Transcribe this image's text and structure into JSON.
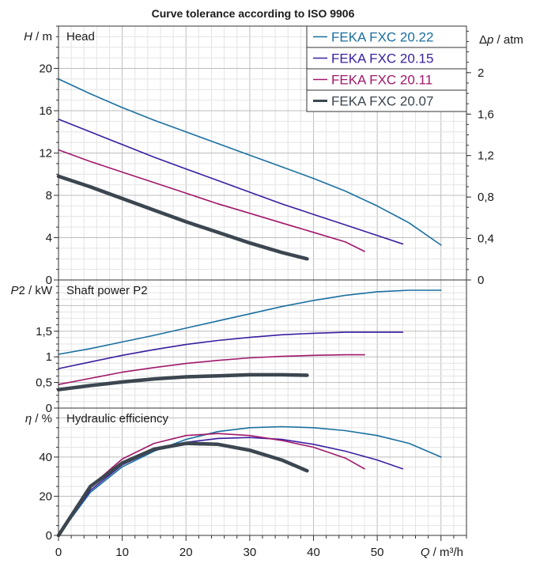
{
  "chart_data": {
    "type": "line",
    "title": "Curve tolerance according to ISO 9906",
    "x_axis": {
      "label_var": "Q",
      "label_unit": " / m³/h",
      "range": [
        0,
        64
      ],
      "ticks": [
        0,
        10,
        20,
        30,
        40,
        50
      ],
      "tick_labels": [
        "0",
        "10",
        "20",
        "30",
        "40",
        "50"
      ]
    },
    "legend": {
      "placement": "top-right",
      "entries": [
        "FEKA FXC 20.22",
        "FEKA FXC 20.15",
        "FEKA FXC 20.11",
        "FEKA FXC 20.07"
      ]
    },
    "series_colors": [
      "#1a6fa0",
      "#3a1ea0",
      "#a0186a",
      "#3c4650"
    ],
    "series_widths": [
      1.6,
      1.6,
      1.6,
      4.5
    ],
    "panels": [
      {
        "title": "Head",
        "y_label_var": "H",
        "y_label_unit": " / m",
        "ylim": [
          0,
          24
        ],
        "y_ticks": [
          0,
          4,
          8,
          12,
          16,
          20
        ],
        "y_tick_labels": [
          "0",
          "4",
          "8",
          "12",
          "16",
          "20"
        ],
        "right_axis": {
          "label_var": "Δp",
          "label_unit": " / atm",
          "ticks": [
            0,
            0.4,
            0.8,
            1.2,
            1.6,
            2
          ],
          "tick_labels": [
            "0",
            "0,4",
            "0,8",
            "1,2",
            "1,6",
            "2"
          ],
          "scale": 9.8
        },
        "series": [
          {
            "x": [
              0,
              5,
              10,
              15,
              20,
              25,
              30,
              35,
              40,
              45,
              50,
              55,
              60
            ],
            "y": [
              19.0,
              17.6,
              16.3,
              15.1,
              14.0,
              12.9,
              11.8,
              10.7,
              9.6,
              8.4,
              7.0,
              5.4,
              3.3
            ]
          },
          {
            "x": [
              0,
              5,
              10,
              15,
              20,
              25,
              30,
              35,
              40,
              45,
              50,
              54
            ],
            "y": [
              15.2,
              14.0,
              12.8,
              11.6,
              10.5,
              9.4,
              8.3,
              7.2,
              6.2,
              5.2,
              4.2,
              3.4
            ]
          },
          {
            "x": [
              0,
              5,
              10,
              15,
              20,
              25,
              30,
              35,
              40,
              45,
              48
            ],
            "y": [
              12.3,
              11.2,
              10.2,
              9.2,
              8.2,
              7.2,
              6.3,
              5.4,
              4.5,
              3.6,
              2.7
            ]
          },
          {
            "x": [
              0,
              5,
              10,
              15,
              20,
              25,
              30,
              35,
              39
            ],
            "y": [
              9.8,
              8.8,
              7.7,
              6.6,
              5.5,
              4.5,
              3.5,
              2.6,
              2.0
            ]
          }
        ]
      },
      {
        "title": "Shaft power P2",
        "y_label_var": "P",
        "y_label_unit": "2 / kW",
        "ylim": [
          0,
          2.5
        ],
        "y_ticks": [
          0,
          0.5,
          1,
          1.5
        ],
        "y_tick_labels": [
          "0",
          "0,5",
          "1",
          "1,5"
        ],
        "series": [
          {
            "x": [
              0,
              5,
              10,
              15,
              20,
              25,
              30,
              35,
              40,
              45,
              50,
              55,
              60
            ],
            "y": [
              1.05,
              1.16,
              1.29,
              1.42,
              1.56,
              1.7,
              1.84,
              1.98,
              2.1,
              2.2,
              2.27,
              2.3,
              2.3
            ]
          },
          {
            "x": [
              0,
              5,
              10,
              15,
              20,
              25,
              30,
              35,
              40,
              45,
              50,
              54
            ],
            "y": [
              0.77,
              0.9,
              1.03,
              1.14,
              1.24,
              1.32,
              1.38,
              1.43,
              1.46,
              1.48,
              1.48,
              1.48
            ]
          },
          {
            "x": [
              0,
              5,
              10,
              15,
              20,
              25,
              30,
              35,
              40,
              45,
              48
            ],
            "y": [
              0.46,
              0.58,
              0.7,
              0.79,
              0.87,
              0.93,
              0.98,
              1.01,
              1.03,
              1.04,
              1.04
            ]
          },
          {
            "x": [
              0,
              5,
              10,
              15,
              20,
              25,
              30,
              35,
              39
            ],
            "y": [
              0.36,
              0.44,
              0.51,
              0.57,
              0.61,
              0.63,
              0.65,
              0.65,
              0.64
            ]
          }
        ]
      },
      {
        "title": "Hydraulic efficiency",
        "y_label_var": "η",
        "y_label_unit": " / %",
        "ylim": [
          0,
          65
        ],
        "y_ticks": [
          0,
          20,
          40
        ],
        "y_tick_labels": [
          "0",
          "20",
          "40"
        ],
        "series": [
          {
            "x": [
              0,
              5,
              10,
              15,
              20,
              25,
              30,
              35,
              40,
              45,
              50,
              55,
              60
            ],
            "y": [
              0,
              22,
              35,
              43,
              49,
              53,
              55,
              55.5,
              55,
              53.5,
              51,
              47,
              40
            ]
          },
          {
            "x": [
              0,
              5,
              10,
              15,
              20,
              25,
              30,
              35,
              40,
              45,
              50,
              54
            ],
            "y": [
              0,
              23,
              36,
              43.5,
              47.5,
              49.5,
              50,
              49,
              46.5,
              43,
              38.5,
              34
            ]
          },
          {
            "x": [
              0,
              5,
              10,
              15,
              20,
              25,
              30,
              35,
              40,
              45,
              48
            ],
            "y": [
              0,
              25,
              39,
              47,
              51,
              52,
              51,
              48.5,
              45,
              39.5,
              34
            ]
          },
          {
            "x": [
              0,
              5,
              10,
              15,
              20,
              25,
              30,
              35,
              39
            ],
            "y": [
              0,
              25,
              37,
              44,
              47,
              46.5,
              43.5,
              38.5,
              33
            ]
          }
        ]
      }
    ]
  }
}
